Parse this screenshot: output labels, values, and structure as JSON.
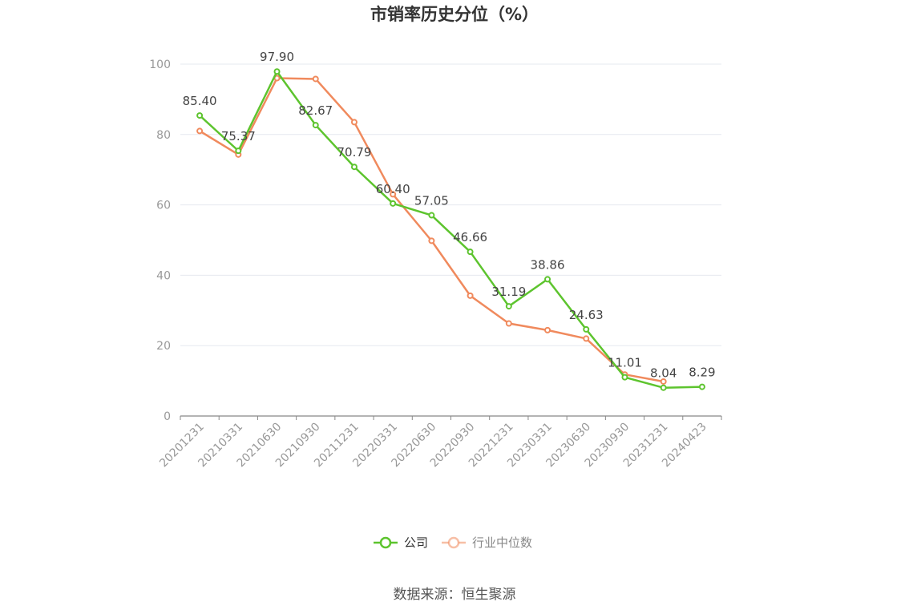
{
  "chart_data": {
    "type": "line",
    "title": "市销率历史分位（%）",
    "x": [
      "20201231",
      "20210331",
      "20210630",
      "20210930",
      "20211231",
      "20220331",
      "20220630",
      "20220930",
      "20221231",
      "20230331",
      "20230630",
      "20230930",
      "20231231",
      "20240423"
    ],
    "ylim": [
      0,
      100
    ],
    "yticks": [
      0,
      20,
      40,
      60,
      80,
      100
    ],
    "grid": true,
    "legend_position": "bottom",
    "series": [
      {
        "name": "公司",
        "color": "#5dc42e",
        "values": [
          85.4,
          75.37,
          97.9,
          82.67,
          70.79,
          60.4,
          57.05,
          46.66,
          31.19,
          38.86,
          24.63,
          11.01,
          8.04,
          8.29
        ],
        "labels": [
          "85.40",
          "75.37",
          "97.90",
          "82.67",
          "70.79",
          "60.40",
          "57.05",
          "46.66",
          "31.19",
          "38.86",
          "24.63",
          "11.01",
          "8.04",
          "8.29"
        ]
      },
      {
        "name": "行业中位数",
        "color": "#f08a5d",
        "values": [
          81.0,
          74.3,
          96.0,
          95.8,
          83.5,
          63.0,
          49.8,
          34.2,
          26.3,
          24.4,
          22.0,
          11.8,
          9.8,
          null
        ]
      }
    ]
  },
  "source": "数据来源：恒生聚源"
}
